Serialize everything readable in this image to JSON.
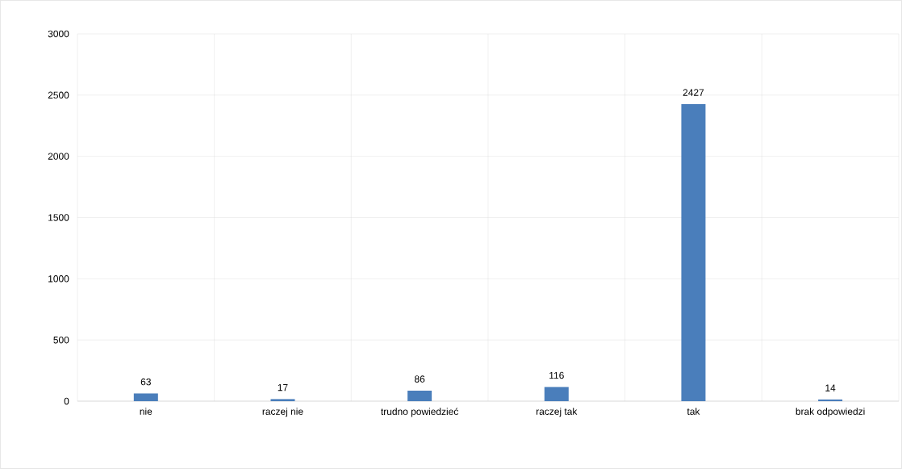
{
  "chart_data": {
    "type": "bar",
    "categories": [
      "nie",
      "raczej nie",
      "trudno powiedzieć",
      "raczej tak",
      "tak",
      "brak odpowiedzi"
    ],
    "values": [
      63,
      17,
      86,
      116,
      2427,
      14
    ],
    "color": "#4a7ebb",
    "ylim": [
      0,
      3000
    ],
    "yticks": [
      0,
      500,
      1000,
      1500,
      2000,
      2500,
      3000
    ],
    "grid": true,
    "data_labels": true
  }
}
